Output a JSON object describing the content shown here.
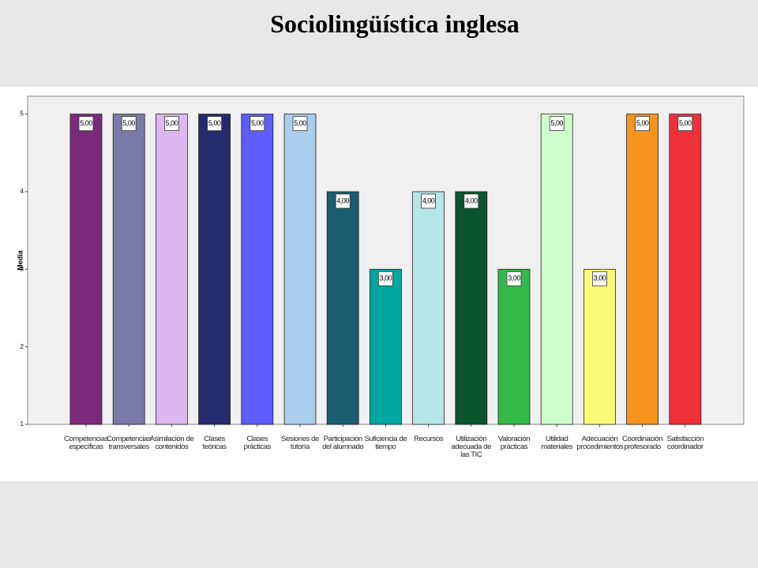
{
  "chart_data": {
    "type": "bar",
    "title": "Sociolingüística inglesa",
    "y_label": "Media",
    "categories": [
      "Competencias específicas",
      "Competencias transversales",
      "Asimilación de contenidos",
      "Clases teóricas",
      "Clases prácticas",
      "Sesiones de tutoría",
      "Participación del alumnado",
      "Suficiencia de tiempo",
      "Recursos",
      "Utilización adecuada de las TIC",
      "Valoración prácticas",
      "Utilidad materiales",
      "Adecuación procedimientos",
      "Coordinación profesorado",
      "Satisfacción coordinador"
    ],
    "values": [
      5,
      5,
      5,
      5,
      5,
      5,
      4,
      3,
      4,
      4,
      3,
      5,
      3,
      5,
      5
    ],
    "value_labels": [
      "5,00",
      "5,00",
      "5,00",
      "5,00",
      "5,00",
      "5,00",
      "4,00",
      "3,00",
      "4,00",
      "4,00",
      "3,00",
      "5,00",
      "3,00",
      "5,00",
      "5,00"
    ],
    "colors": [
      "#7b2a7b",
      "#7a7aa8",
      "#dcb8f0",
      "#262a6e",
      "#5c5cff",
      "#aacdee",
      "#1a5c70",
      "#00a6a0",
      "#b4e6e6",
      "#0a5530",
      "#33b84a",
      "#ccffcc",
      "#fafa78",
      "#f7941d",
      "#f03038"
    ],
    "ylim": [
      1,
      5.23
    ],
    "yticks": [
      1,
      2,
      3,
      4,
      5
    ]
  }
}
